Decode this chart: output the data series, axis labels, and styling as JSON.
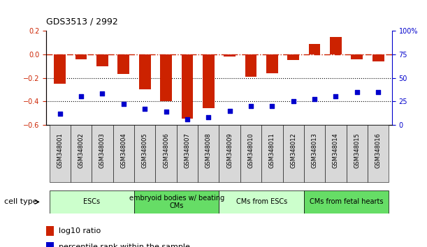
{
  "title": "GDS3513 / 2992",
  "samples": [
    "GSM348001",
    "GSM348002",
    "GSM348003",
    "GSM348004",
    "GSM348005",
    "GSM348006",
    "GSM348007",
    "GSM348008",
    "GSM348009",
    "GSM348010",
    "GSM348011",
    "GSM348012",
    "GSM348013",
    "GSM348014",
    "GSM348015",
    "GSM348016"
  ],
  "log10_ratio": [
    -0.25,
    -0.04,
    -0.1,
    -0.17,
    -0.3,
    -0.4,
    -0.55,
    -0.46,
    -0.02,
    -0.19,
    -0.16,
    -0.05,
    0.09,
    0.15,
    -0.04,
    -0.06
  ],
  "percentile_rank": [
    12,
    30,
    33,
    22,
    17,
    14,
    6,
    8,
    15,
    20,
    20,
    25,
    27,
    30,
    35,
    35
  ],
  "ylim_left": [
    -0.6,
    0.2
  ],
  "ylim_right": [
    0,
    100
  ],
  "bar_color": "#cc2200",
  "dot_color": "#0000cc",
  "hline_color": "#cc2200",
  "dotted_line_color": "#000000",
  "cell_type_groups": [
    {
      "label": "ESCs",
      "start": 0,
      "end": 3,
      "color": "#ccffcc"
    },
    {
      "label": "embryoid bodies w/ beating\nCMs",
      "start": 4,
      "end": 7,
      "color": "#66dd66"
    },
    {
      "label": "CMs from ESCs",
      "start": 8,
      "end": 11,
      "color": "#ccffcc"
    },
    {
      "label": "CMs from fetal hearts",
      "start": 12,
      "end": 15,
      "color": "#66dd66"
    }
  ],
  "legend_items": [
    {
      "label": "log10 ratio",
      "color": "#cc2200"
    },
    {
      "label": "percentile rank within the sample",
      "color": "#0000cc"
    }
  ],
  "cell_type_label": "cell type",
  "bar_width": 0.55,
  "yticks_left": [
    -0.6,
    -0.4,
    -0.2,
    0.0,
    0.2
  ],
  "yticks_right": [
    0,
    25,
    50,
    75,
    100
  ],
  "xtick_bg": "#dddddd"
}
